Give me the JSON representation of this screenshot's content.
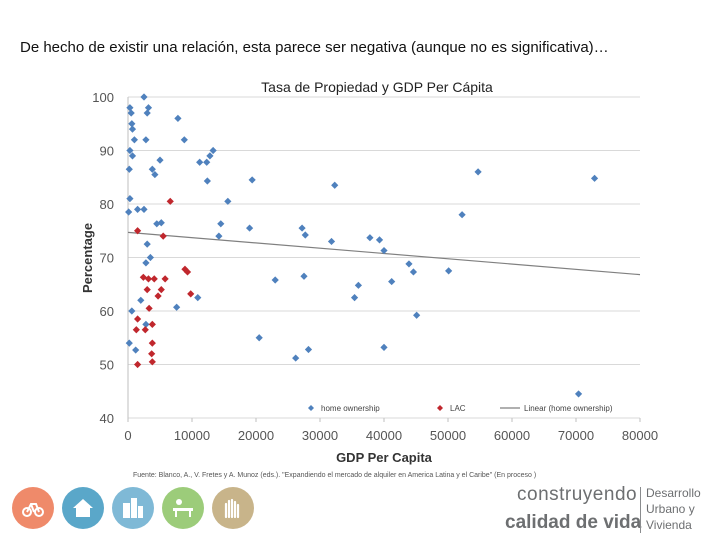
{
  "slide": {
    "heading": "De hecho de existir una relación, esta parece ser negativa (aunque no es significativa)…",
    "source": "Fuente: Blanco, A., V. Fretes y A. Munoz (eds.). \"Expandiendo el mercado de alquiler en America Latina y el Caribe\" (En proceso )"
  },
  "brand": {
    "line1": "construyendo",
    "line2": "calidad de vida",
    "right1": "Desarrollo",
    "right2": "Urbano y",
    "right3": "Vivienda"
  },
  "footer_icons": [
    {
      "name": "bicycle-icon",
      "color": "#ef8a6a"
    },
    {
      "name": "house-icon",
      "color": "#5aa7c9"
    },
    {
      "name": "buildings-icon",
      "color": "#7fb9d6"
    },
    {
      "name": "park-bench-icon",
      "color": "#9ccc7a"
    },
    {
      "name": "hands-icon",
      "color": "#c8b48a"
    }
  ],
  "colors": {
    "home": "#4f81bd",
    "lac": "#c0272d",
    "trend": "#808080",
    "grid": "#d9d9d9"
  },
  "chart_data": {
    "type": "scatter",
    "title": "Tasa de Propiedad y GDP Per Cápita",
    "xlabel": "GDP Per Capita",
    "ylabel": "Percentage",
    "xlim": [
      0,
      80000
    ],
    "ylim": [
      40,
      100
    ],
    "xticks": [
      0,
      10000,
      20000,
      30000,
      40000,
      50000,
      60000,
      70000,
      80000
    ],
    "xtick_labels": [
      "0",
      "10000",
      "20000",
      "30000",
      "40000",
      "50000",
      "60000",
      "70000",
      "80000"
    ],
    "yticks": [
      40,
      50,
      60,
      70,
      80,
      90,
      100
    ],
    "ytick_labels": [
      "40",
      "50",
      "60",
      "70",
      "80",
      "90",
      "100"
    ],
    "legend_position": "bottom",
    "grid": "horizontal",
    "series": [
      {
        "name": "home ownership",
        "marker": "diamond",
        "points": [
          [
            300,
            98
          ],
          [
            500,
            97
          ],
          [
            600,
            95
          ],
          [
            700,
            94
          ],
          [
            1000,
            92
          ],
          [
            300,
            90
          ],
          [
            700,
            89
          ],
          [
            200,
            86.5
          ],
          [
            300,
            81
          ],
          [
            100,
            78.5
          ],
          [
            1500,
            79
          ],
          [
            2500,
            79
          ],
          [
            4500,
            76.3
          ],
          [
            3500,
            70
          ],
          [
            2800,
            69
          ],
          [
            600,
            60
          ],
          [
            1200,
            52.7
          ],
          [
            200,
            54
          ],
          [
            2000,
            62
          ],
          [
            2800,
            57.5
          ],
          [
            2500,
            100
          ],
          [
            3200,
            98
          ],
          [
            3000,
            97
          ],
          [
            2800,
            92
          ],
          [
            3800,
            86.5
          ],
          [
            4200,
            85.5
          ],
          [
            5000,
            88.2
          ],
          [
            7800,
            96
          ],
          [
            8800,
            92
          ],
          [
            11200,
            87.8
          ],
          [
            12300,
            87.8
          ],
          [
            12800,
            89
          ],
          [
            13300,
            90
          ],
          [
            12400,
            84.3
          ],
          [
            15600,
            80.5
          ],
          [
            19400,
            84.5
          ],
          [
            14500,
            76.3
          ],
          [
            14200,
            74
          ],
          [
            19000,
            75.5
          ],
          [
            5200,
            76.5
          ],
          [
            3000,
            72.5
          ],
          [
            7600,
            60.7
          ],
          [
            10900,
            62.5
          ],
          [
            20500,
            55
          ],
          [
            23000,
            65.8
          ],
          [
            26200,
            51.2
          ],
          [
            28200,
            52.8
          ],
          [
            27500,
            66.5
          ],
          [
            27200,
            75.5
          ],
          [
            27700,
            74.2
          ],
          [
            31800,
            73
          ],
          [
            32300,
            83.5
          ],
          [
            35400,
            62.5
          ],
          [
            36000,
            64.8
          ],
          [
            37800,
            73.7
          ],
          [
            39300,
            73.3
          ],
          [
            40000,
            71.3
          ],
          [
            41200,
            65.5
          ],
          [
            40000,
            53.2
          ],
          [
            43900,
            68.8
          ],
          [
            44600,
            67.3
          ],
          [
            45100,
            59.2
          ],
          [
            50100,
            67.5
          ],
          [
            52200,
            78
          ],
          [
            54700,
            86
          ],
          [
            70400,
            44.5
          ],
          [
            72900,
            84.8
          ]
        ]
      },
      {
        "name": "LAC",
        "marker": "diamond",
        "points": [
          [
            1500,
            75
          ],
          [
            1500,
            58.5
          ],
          [
            1300,
            56.5
          ],
          [
            1500,
            50
          ],
          [
            2400,
            66.3
          ],
          [
            3200,
            66
          ],
          [
            3000,
            64
          ],
          [
            3300,
            60.5
          ],
          [
            3700,
            52
          ],
          [
            3800,
            54
          ],
          [
            3800,
            50.5
          ],
          [
            4100,
            66
          ],
          [
            4700,
            62.8
          ],
          [
            5200,
            64
          ],
          [
            5800,
            66
          ],
          [
            5500,
            74
          ],
          [
            6600,
            80.5
          ],
          [
            8900,
            67.8
          ],
          [
            9300,
            67.3
          ],
          [
            9800,
            63.2
          ],
          [
            2700,
            56.5
          ],
          [
            3800,
            57.5
          ]
        ]
      }
    ],
    "trendline": {
      "name": "Linear (home ownership)",
      "x": [
        0,
        80000
      ],
      "y": [
        74.7,
        66.8
      ]
    }
  }
}
